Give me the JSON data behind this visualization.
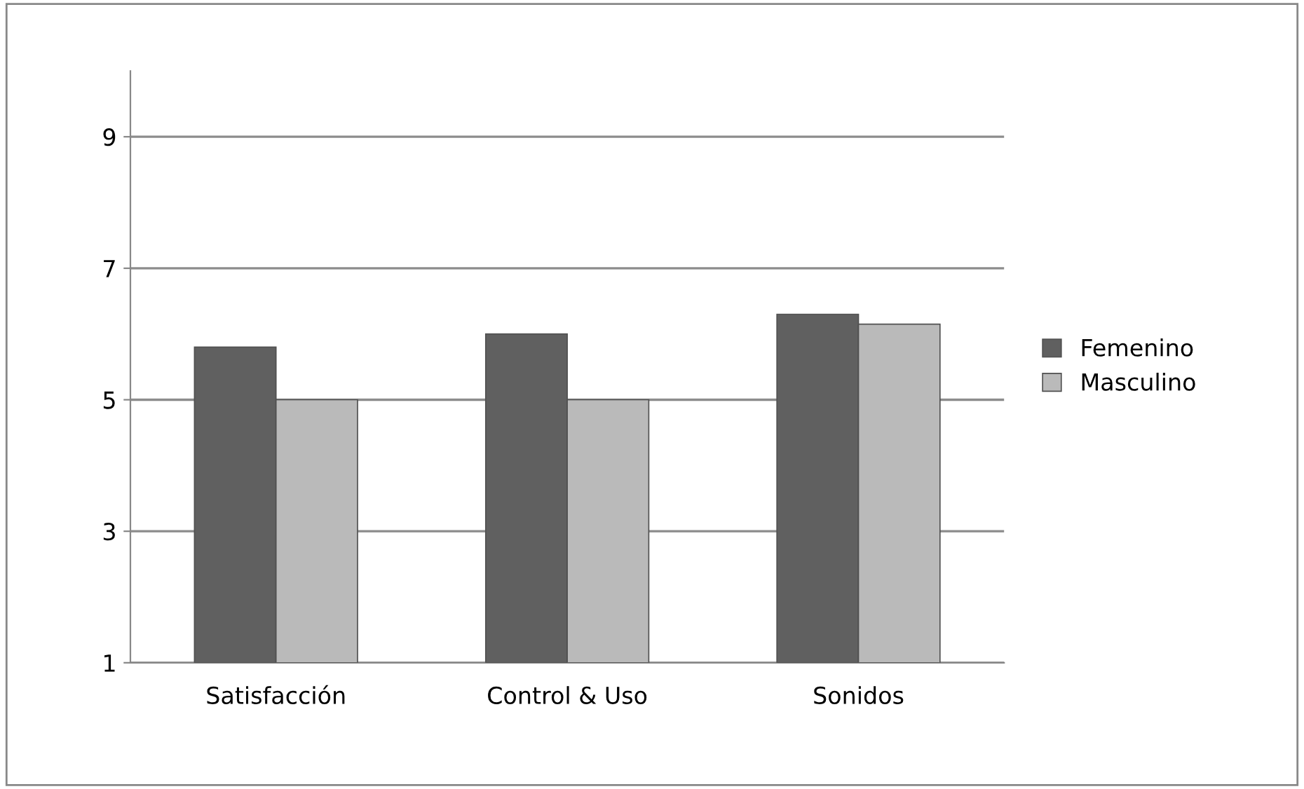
{
  "chart_data": {
    "type": "bar",
    "categories": [
      "Satisfacción",
      "Control & Uso",
      "Sonidos"
    ],
    "series": [
      {
        "name": "Femenino",
        "color": "#606060",
        "values": [
          5.8,
          6.0,
          6.3
        ]
      },
      {
        "name": "Masculino",
        "color": "#bababa",
        "values": [
          5.0,
          5.0,
          6.15
        ]
      }
    ],
    "ylim": [
      1,
      10
    ],
    "yticks": [
      1,
      3,
      5,
      7,
      9
    ],
    "grid": "y",
    "legend": "right"
  }
}
